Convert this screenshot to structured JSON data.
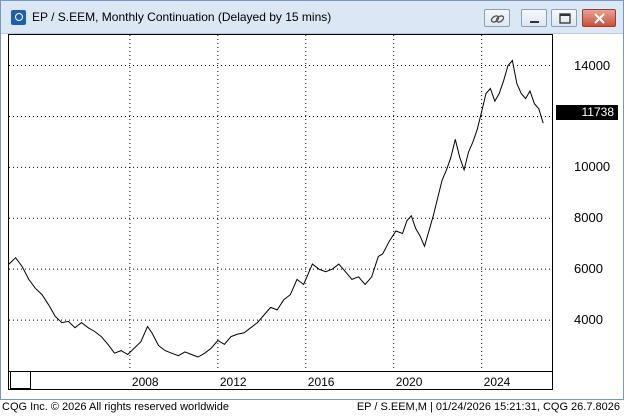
{
  "window": {
    "title": "EP / S.EEM, Monthly Continuation (Delayed by 15 mins)"
  },
  "footer": {
    "copyright": "CQG Inc. © 2026 All rights reserved worldwide",
    "status": "EP / S.EEM,M | 01/24/2026 15:21:31, CQG 26.7.8026"
  },
  "colors": {
    "line": "#000000",
    "gridline": "#000000",
    "title_bar": "#dbe7f4"
  },
  "chart_data": {
    "type": "line",
    "title": "EP / S.EEM, Monthly Continuation (Delayed by 15 mins)",
    "xlim": [
      2002.5,
      2027.2
    ],
    "ylim": [
      2000,
      15200
    ],
    "x_ticks": [
      2008,
      2012,
      2016,
      2020,
      2024
    ],
    "x_tick_labels": [
      "2008",
      "2012",
      "2016",
      "2020",
      "2024"
    ],
    "y_ticks": [
      4000,
      6000,
      8000,
      10000,
      12000,
      14000
    ],
    "y_tick_labels": [
      "4000",
      "6000",
      "8000",
      "10000",
      "12000",
      "14000"
    ],
    "grid": true,
    "last_value_label": "11738",
    "series": [
      {
        "values": [
          [
            2002.5,
            6200
          ],
          [
            2002.8,
            6450
          ],
          [
            2003.1,
            6100
          ],
          [
            2003.4,
            5600
          ],
          [
            2003.7,
            5250
          ],
          [
            2004.0,
            5000
          ],
          [
            2004.3,
            4600
          ],
          [
            2004.6,
            4150
          ],
          [
            2004.9,
            3900
          ],
          [
            2005.2,
            3950
          ],
          [
            2005.5,
            3700
          ],
          [
            2005.8,
            3900
          ],
          [
            2006.1,
            3700
          ],
          [
            2006.4,
            3550
          ],
          [
            2006.7,
            3350
          ],
          [
            2007.0,
            3050
          ],
          [
            2007.3,
            2700
          ],
          [
            2007.6,
            2800
          ],
          [
            2007.9,
            2650
          ],
          [
            2008.2,
            2900
          ],
          [
            2008.5,
            3150
          ],
          [
            2008.8,
            3750
          ],
          [
            2009.0,
            3500
          ],
          [
            2009.3,
            3000
          ],
          [
            2009.6,
            2800
          ],
          [
            2009.9,
            2700
          ],
          [
            2010.2,
            2600
          ],
          [
            2010.5,
            2750
          ],
          [
            2010.8,
            2650
          ],
          [
            2011.1,
            2550
          ],
          [
            2011.4,
            2700
          ],
          [
            2011.7,
            2900
          ],
          [
            2012.0,
            3200
          ],
          [
            2012.3,
            3050
          ],
          [
            2012.6,
            3350
          ],
          [
            2012.9,
            3450
          ],
          [
            2013.2,
            3500
          ],
          [
            2013.5,
            3700
          ],
          [
            2013.8,
            3900
          ],
          [
            2014.1,
            4200
          ],
          [
            2014.4,
            4500
          ],
          [
            2014.7,
            4400
          ],
          [
            2015.0,
            4800
          ],
          [
            2015.3,
            5000
          ],
          [
            2015.6,
            5600
          ],
          [
            2015.9,
            5400
          ],
          [
            2016.1,
            5800
          ],
          [
            2016.3,
            6200
          ],
          [
            2016.6,
            6000
          ],
          [
            2016.9,
            5900
          ],
          [
            2017.2,
            6000
          ],
          [
            2017.5,
            6200
          ],
          [
            2017.8,
            5900
          ],
          [
            2018.1,
            5600
          ],
          [
            2018.4,
            5700
          ],
          [
            2018.7,
            5400
          ],
          [
            2019.0,
            5700
          ],
          [
            2019.3,
            6500
          ],
          [
            2019.5,
            6600
          ],
          [
            2019.8,
            7100
          ],
          [
            2020.1,
            7500
          ],
          [
            2020.4,
            7400
          ],
          [
            2020.6,
            7900
          ],
          [
            2020.8,
            8100
          ],
          [
            2021.0,
            7600
          ],
          [
            2021.2,
            7300
          ],
          [
            2021.4,
            6900
          ],
          [
            2021.6,
            7500
          ],
          [
            2021.8,
            8100
          ],
          [
            2022.0,
            8800
          ],
          [
            2022.2,
            9500
          ],
          [
            2022.4,
            9900
          ],
          [
            2022.6,
            10400
          ],
          [
            2022.8,
            11100
          ],
          [
            2023.0,
            10400
          ],
          [
            2023.2,
            9900
          ],
          [
            2023.4,
            10600
          ],
          [
            2023.6,
            11000
          ],
          [
            2023.8,
            11500
          ],
          [
            2024.0,
            12200
          ],
          [
            2024.2,
            12900
          ],
          [
            2024.4,
            13100
          ],
          [
            2024.6,
            12600
          ],
          [
            2024.8,
            12900
          ],
          [
            2025.0,
            13400
          ],
          [
            2025.2,
            14000
          ],
          [
            2025.4,
            14200
          ],
          [
            2025.6,
            13300
          ],
          [
            2025.8,
            12900
          ],
          [
            2026.0,
            12700
          ],
          [
            2026.2,
            13000
          ],
          [
            2026.4,
            12500
          ],
          [
            2026.6,
            12300
          ],
          [
            2026.8,
            11738
          ]
        ]
      }
    ]
  }
}
